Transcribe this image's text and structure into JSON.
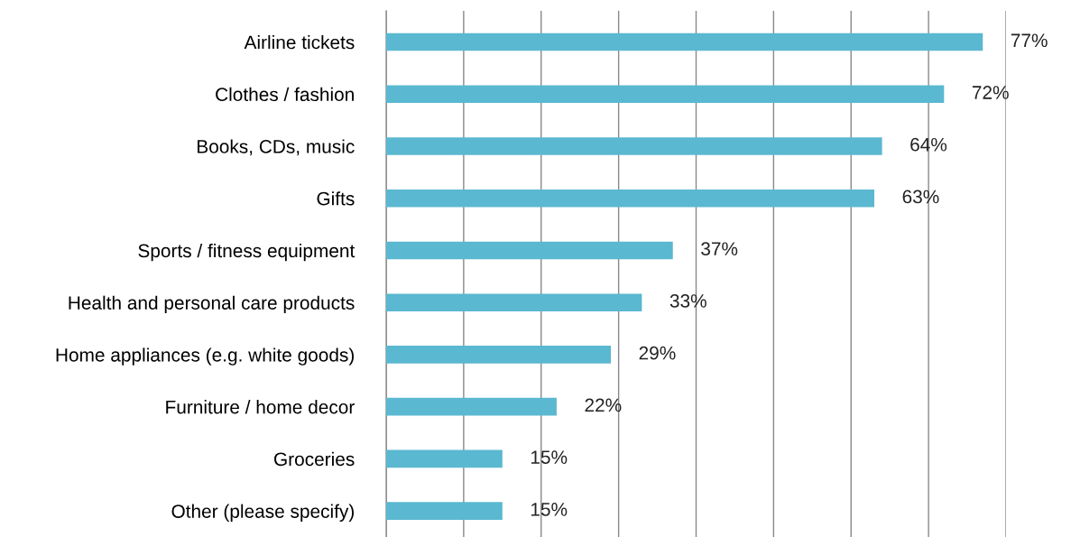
{
  "chart_data": {
    "type": "bar",
    "orientation": "horizontal",
    "categories": [
      "Airline tickets",
      "Clothes / fashion",
      "Books, CDs, music",
      "Gifts",
      "Sports / fitness equipment",
      "Health and personal care products",
      "Home appliances (e.g. white goods)",
      "Furniture / home decor",
      "Groceries",
      "Other (please specify)"
    ],
    "values": [
      77,
      72,
      64,
      63,
      37,
      33,
      29,
      22,
      15,
      15
    ],
    "value_labels": [
      "77%",
      "72%",
      "64%",
      "63%",
      "37%",
      "33%",
      "29%",
      "22%",
      "15%",
      "15%"
    ],
    "color": "#5ab8d0",
    "xlim": [
      0,
      80
    ],
    "xticks": [
      {
        "value": 0,
        "label": null
      },
      {
        "value": 10,
        "label": null
      },
      {
        "value": 20,
        "label": null
      },
      {
        "value": 30,
        "label": null
      },
      {
        "value": 40,
        "label": null
      },
      {
        "value": 50,
        "label": null
      },
      {
        "value": 60,
        "label": null
      },
      {
        "value": 70,
        "label": null
      },
      {
        "value": 80,
        "label": null
      }
    ],
    "grid": "x",
    "tick_labels": "y"
  }
}
